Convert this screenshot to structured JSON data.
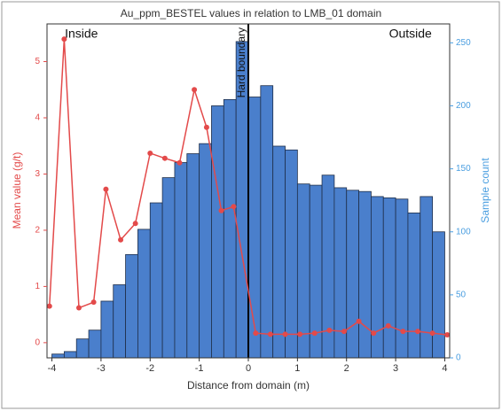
{
  "chart_data": {
    "type": "combo",
    "title": "Au_ppm_BESTEL values in relation to LMB_01 domain",
    "xlabel": "Distance from domain   (m)",
    "ylabel": "Mean value  (g/t)",
    "y2label": "Sample count",
    "annotations": [
      {
        "text": "Inside",
        "x": -3.4
      },
      {
        "text": "Outside",
        "x": 3.3
      },
      {
        "text": "Hard boundary",
        "x": 0
      }
    ],
    "xlim": [
      -4.1,
      4.1
    ],
    "xticks": [
      -4,
      -3,
      -2,
      -1,
      0,
      1,
      2,
      3,
      4
    ],
    "ylim": [
      -0.27,
      5.67
    ],
    "yticks": [
      0,
      1,
      2,
      3,
      4,
      5
    ],
    "y2lim": [
      0,
      265
    ],
    "y2ticks": [
      0,
      50,
      100,
      150,
      200,
      250
    ],
    "series": [
      {
        "type": "histogram",
        "color": "#4a7fcc",
        "axis": "y2",
        "bins": [
          -4,
          -3.75,
          -3.5,
          -3.25,
          -3,
          -2.75,
          -2.5,
          -2.25,
          -2,
          -1.75,
          -1.5,
          -1.25,
          -1,
          -0.75,
          -0.5,
          -0.25,
          0,
          0.25,
          0.5,
          0.75,
          1,
          1.25,
          1.5,
          1.75,
          2,
          2.25,
          2.5,
          2.75,
          3,
          3.25,
          3.5,
          3.75,
          4
        ],
        "counts": [
          3,
          5,
          15,
          22,
          45,
          58,
          82,
          102,
          123,
          143,
          155,
          162,
          170,
          200,
          205,
          251,
          207,
          216,
          168,
          165,
          138,
          137,
          145,
          135,
          133,
          132,
          128,
          127,
          126,
          115,
          128,
          100
        ]
      },
      {
        "type": "line",
        "color": "#e34a4a",
        "x": [
          -4.05,
          -3.75,
          -3.45,
          -3.15,
          -2.9,
          -2.6,
          -2.3,
          -2.0,
          -1.7,
          -1.4,
          -1.1,
          -0.85,
          -0.55,
          -0.3,
          0.15,
          0.45,
          0.75,
          1.05,
          1.35,
          1.65,
          1.95,
          2.25,
          2.55,
          2.85,
          3.15,
          3.45,
          3.75,
          4.05
        ],
        "values": [
          0.65,
          5.4,
          0.62,
          0.72,
          2.73,
          1.83,
          2.12,
          3.37,
          3.28,
          3.2,
          4.5,
          3.83,
          2.35,
          2.42,
          0.17,
          0.15,
          0.15,
          0.15,
          0.17,
          0.22,
          0.2,
          0.38,
          0.17,
          0.3,
          0.2,
          0.2,
          0.17,
          0.14
        ]
      }
    ]
  }
}
